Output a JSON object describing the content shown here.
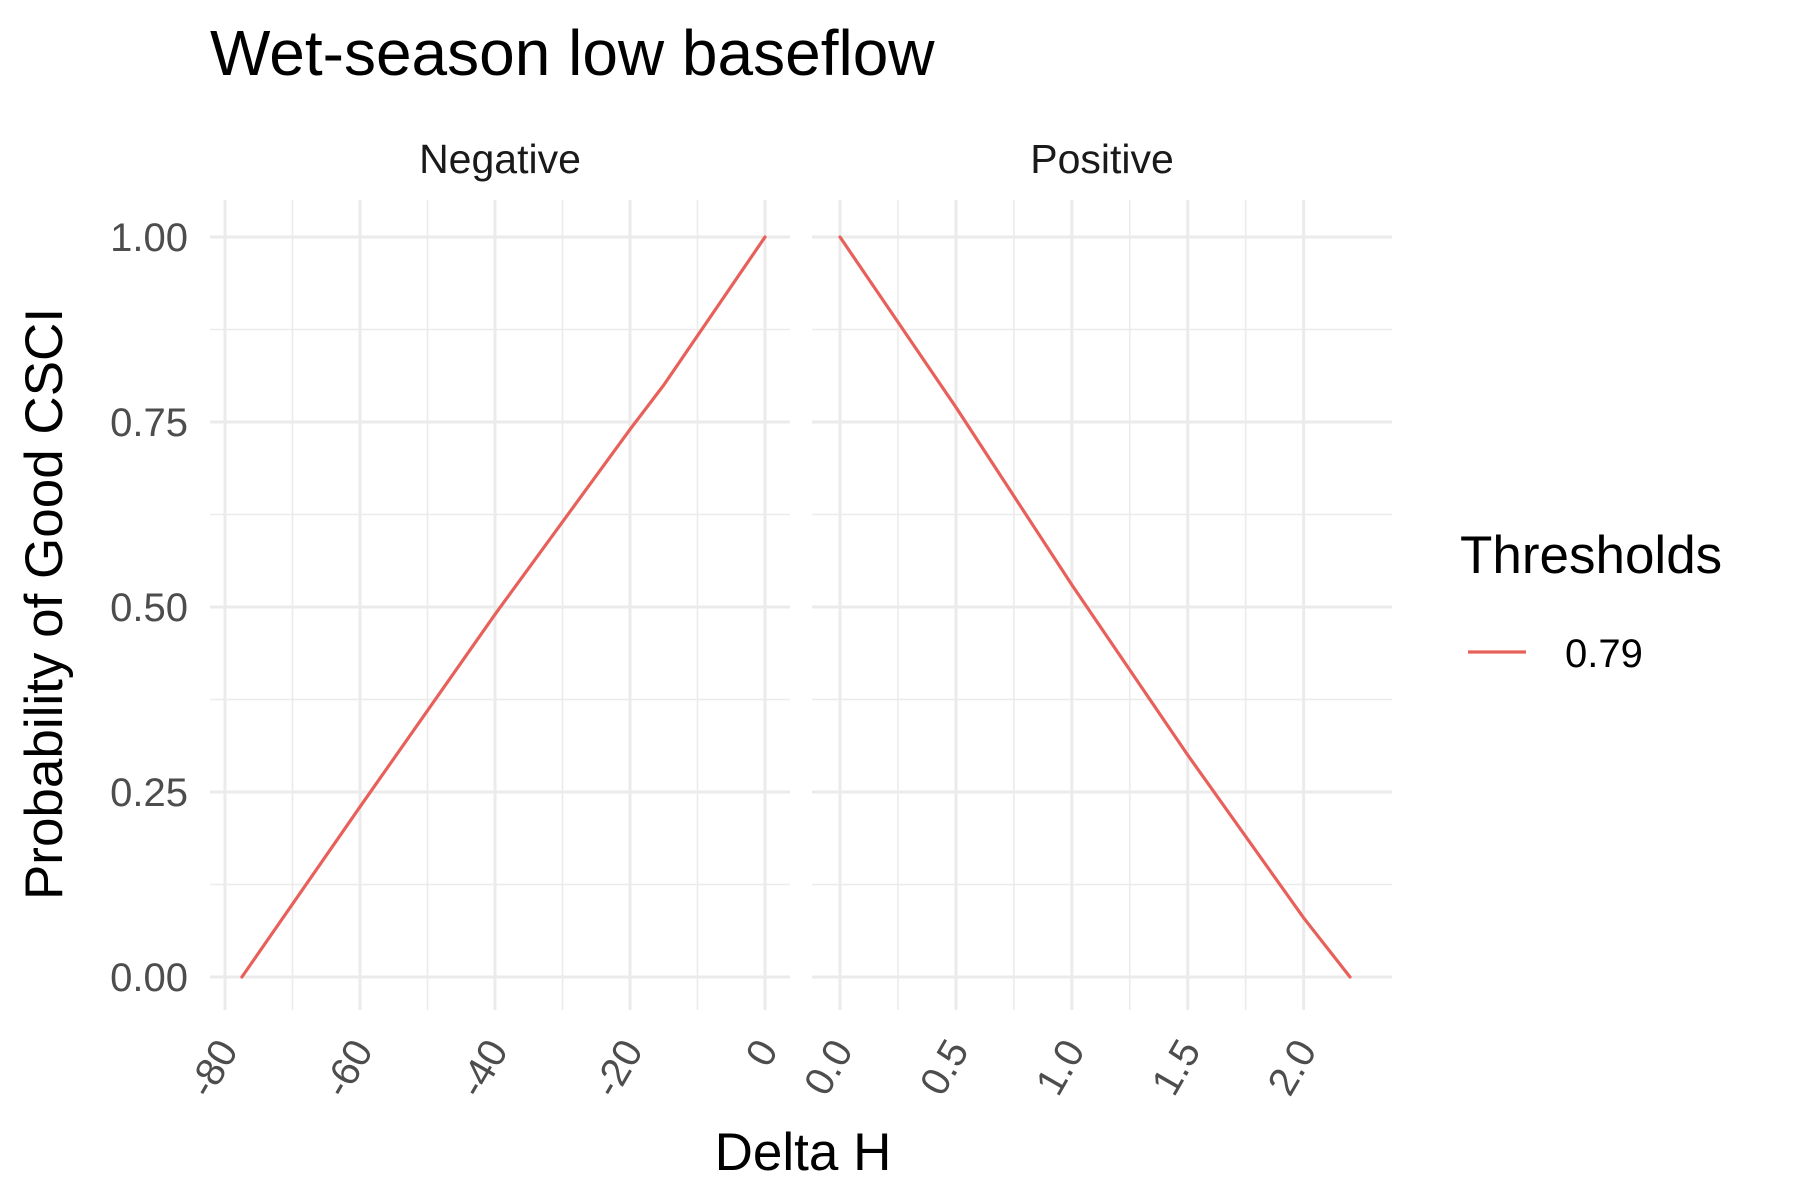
{
  "chart_data": {
    "type": "line",
    "title": "Wet-season low baseflow",
    "xlabel": "Delta H",
    "ylabel": "Probability of Good CSCI",
    "ylim": [
      0,
      1
    ],
    "yticks": [
      "0.00",
      "0.25",
      "0.50",
      "0.75",
      "1.00"
    ],
    "grid": true,
    "legend": {
      "title": "Thresholds",
      "position": "right",
      "entries": [
        "0.79"
      ]
    },
    "series_color": "#E8605A",
    "panels": [
      {
        "label": "Negative",
        "xlim": [
          -80,
          0
        ],
        "xticks": [
          "-80",
          "-60",
          "-40",
          "-20",
          "0"
        ],
        "series": [
          {
            "name": "0.79",
            "x": [
              -77.5,
              -60,
              -40,
              -20,
              -15,
              0
            ],
            "y": [
              0.0,
              0.23,
              0.49,
              0.74,
              0.8,
              1.0
            ]
          }
        ]
      },
      {
        "label": "Positive",
        "xlim": [
          0,
          2.2
        ],
        "xticks": [
          "0.0",
          "0.5",
          "1.0",
          "1.5",
          "2.0"
        ],
        "series": [
          {
            "name": "0.79",
            "x": [
              0.0,
              0.5,
              1.0,
              1.5,
              2.0,
              2.2
            ],
            "y": [
              1.0,
              0.77,
              0.53,
              0.3,
              0.08,
              0.0
            ]
          }
        ]
      }
    ]
  }
}
